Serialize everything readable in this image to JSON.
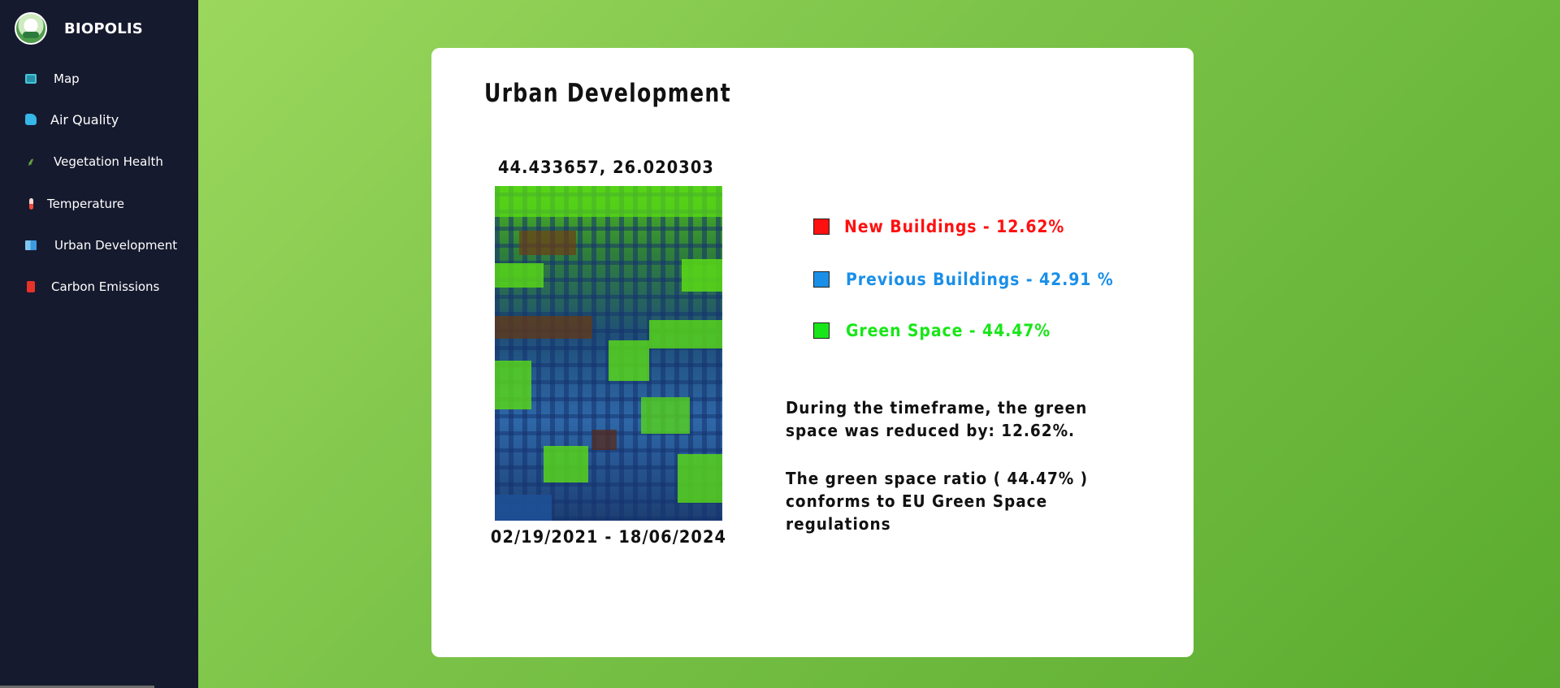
{
  "app": {
    "name": "BIOPOLIS"
  },
  "sidebar": {
    "items": [
      {
        "label": "Map",
        "icon": "map-icon"
      },
      {
        "label": "Air Quality",
        "icon": "air-quality-icon"
      },
      {
        "label": "Vegetation Health",
        "icon": "leaf-icon"
      },
      {
        "label": "Temperature",
        "icon": "thermometer-icon"
      },
      {
        "label": "Urban Development",
        "icon": "buildings-icon"
      },
      {
        "label": "Carbon Emissions",
        "icon": "barrel-icon"
      }
    ]
  },
  "card": {
    "title": "Urban Development",
    "coordinates": "44.433657, 26.020303",
    "date_range": "02/19/2021 - 18/06/2024",
    "legend": [
      {
        "label": "New Buildings - 12.62%",
        "color": "#ff1010"
      },
      {
        "label": "Previous Buildings - 42.91 %",
        "color": "#1a8fe8"
      },
      {
        "label": "Green Space - 44.47%",
        "color": "#19e619"
      }
    ],
    "description_1": "During the timeframe, the green space was reduced by: 12.62%.",
    "description_2": "The green space ratio ( 44.47% ) conforms to EU Green Space regulations"
  },
  "colors": {
    "sidebar_bg": "#161a2e",
    "accent_green": "#7cc449"
  }
}
